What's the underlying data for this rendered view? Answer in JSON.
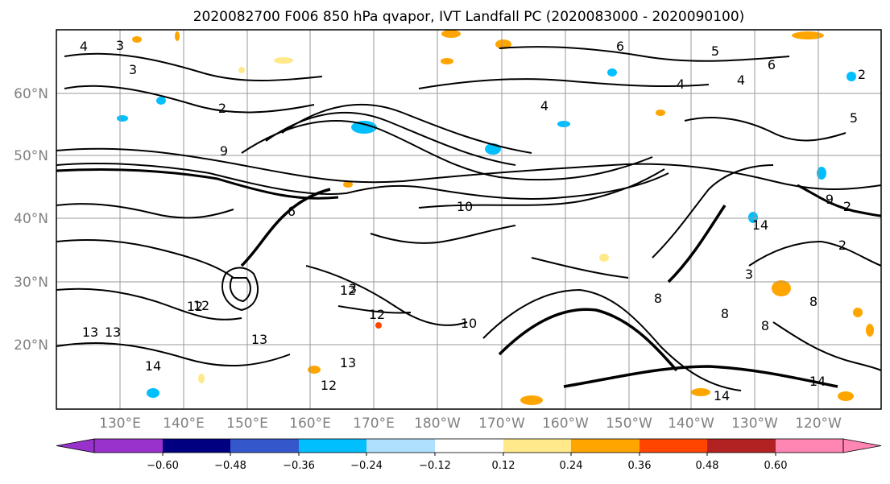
{
  "title": "2020082700 F006 850 hPa qvapor, IVT Landfall PC (2020083000 - 2020090100)",
  "lat_labels": [
    "60°N",
    "50°N",
    "40°N",
    "30°N",
    "20°N"
  ],
  "lon_labels": [
    "130°E",
    "140°E",
    "150°E",
    "160°E",
    "170°E",
    "180°W",
    "170°W",
    "160°W",
    "150°W",
    "140°W",
    "130°W",
    "120°W"
  ],
  "colorbar": {
    "tick_labels": [
      "−0.60",
      "−0.48",
      "−0.36",
      "−0.24",
      "−0.12",
      "0.12",
      "0.24",
      "0.36",
      "0.48",
      "0.60"
    ],
    "colors": [
      "#9932cc",
      "#000080",
      "#3457cc",
      "#00bfff",
      "#afe1ff",
      "#ffffff",
      "#ffe98a",
      "#ffa500",
      "#ff4500",
      "#b22222",
      "#ff85b3"
    ]
  },
  "contour_labels": [
    "3",
    "3",
    "6",
    "5",
    "6",
    "4",
    "2",
    "2",
    "4",
    "4",
    "6",
    "9",
    "4",
    "2",
    "10",
    "12",
    "12",
    "13",
    "13",
    "12",
    "14",
    "2",
    "14",
    "3",
    "3",
    "12",
    "13",
    "13",
    "12",
    "8",
    "10",
    "8",
    "9",
    "8",
    "8",
    "5",
    "14",
    "14"
  ]
}
